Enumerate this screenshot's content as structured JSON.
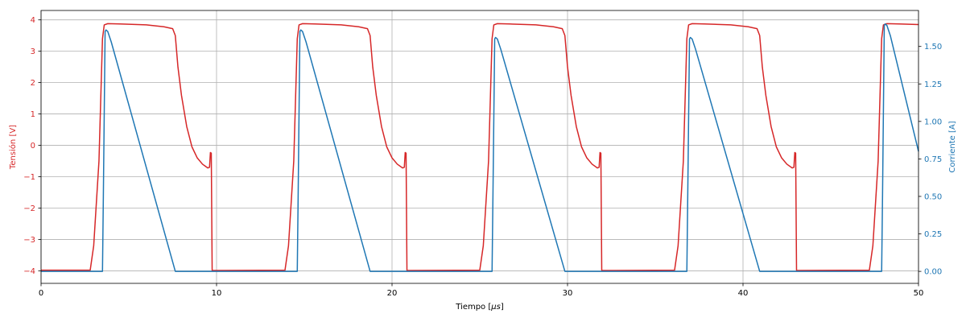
{
  "chart_data": {
    "type": "line",
    "xlabel": "Tiempo [$\\mu s$]",
    "xlim": [
      0,
      50
    ],
    "x_ticks": [
      "0",
      "10",
      "20",
      "30",
      "40",
      "50"
    ],
    "y_left": {
      "label": "Tensión [V]",
      "color": "#d62728",
      "lim": [
        -4.4,
        4.3
      ],
      "ticks": [
        "−4",
        "−3",
        "−2",
        "−1",
        "0",
        "1",
        "2",
        "3",
        "4"
      ]
    },
    "y_right": {
      "label": "Corriente [A]",
      "color": "#1f77b4",
      "lim": [
        -0.08,
        1.74
      ],
      "ticks": [
        "0.00",
        "0.25",
        "0.50",
        "0.75",
        "1.00",
        "1.25",
        "1.50"
      ]
    },
    "grid": true,
    "series": [
      {
        "axis": "left",
        "color": "#d62728",
        "x": [
          0,
          2.8,
          3.0,
          3.3,
          3.5,
          3.6,
          3.8,
          4.5,
          6.0,
          7.0,
          7.5,
          7.65,
          7.8,
          8.0,
          8.3,
          8.6,
          8.9,
          9.2,
          9.5,
          9.6,
          9.65,
          9.7,
          9.75,
          9.8,
          13.9,
          14.1,
          14.4,
          14.6,
          14.7,
          14.9,
          15.6,
          17.1,
          18.1,
          18.6,
          18.75,
          18.9,
          19.1,
          19.4,
          19.7,
          20.0,
          20.3,
          20.6,
          20.7,
          20.75,
          20.8,
          20.85,
          20.9,
          25.0,
          25.2,
          25.5,
          25.7,
          25.8,
          26.0,
          26.7,
          28.2,
          29.2,
          29.7,
          29.85,
          30.0,
          30.2,
          30.5,
          30.8,
          31.1,
          31.4,
          31.7,
          31.8,
          31.85,
          31.9,
          31.95,
          32.0,
          36.1,
          36.3,
          36.6,
          36.8,
          36.9,
          37.1,
          37.8,
          39.3,
          40.3,
          40.8,
          40.95,
          41.1,
          41.3,
          41.6,
          41.9,
          42.2,
          42.5,
          42.8,
          42.9,
          42.95,
          43.0,
          43.05,
          43.1,
          47.2,
          47.4,
          47.7,
          47.9,
          48.0,
          48.2,
          48.9,
          50
        ],
        "y": [
          -3.98,
          -3.98,
          -3.2,
          -0.5,
          3.4,
          3.84,
          3.88,
          3.87,
          3.84,
          3.78,
          3.72,
          3.5,
          2.5,
          1.6,
          0.6,
          -0.05,
          -0.4,
          -0.6,
          -0.72,
          -0.7,
          -0.23,
          -0.25,
          -3.99,
          -3.99,
          -3.98,
          -3.2,
          -0.5,
          3.4,
          3.84,
          3.88,
          3.87,
          3.84,
          3.78,
          3.72,
          3.5,
          2.5,
          1.6,
          0.6,
          -0.05,
          -0.4,
          -0.6,
          -0.72,
          -0.7,
          -0.23,
          -0.25,
          -3.99,
          -3.99,
          -3.98,
          -3.2,
          -0.5,
          3.4,
          3.84,
          3.88,
          3.87,
          3.84,
          3.78,
          3.72,
          3.5,
          2.5,
          1.6,
          0.6,
          -0.05,
          -0.4,
          -0.6,
          -0.72,
          -0.7,
          -0.23,
          -0.25,
          -3.99,
          -3.99,
          -3.98,
          -3.2,
          -0.5,
          3.4,
          3.84,
          3.88,
          3.87,
          3.84,
          3.78,
          3.72,
          3.5,
          2.5,
          1.6,
          0.6,
          -0.05,
          -0.4,
          -0.6,
          -0.72,
          -0.7,
          -0.23,
          -0.25,
          -3.99,
          -3.99,
          -3.98,
          -3.2,
          -0.5,
          3.4,
          3.84,
          3.88,
          3.87,
          3.85
        ]
      },
      {
        "axis": "right",
        "color": "#1f77b4",
        "x": [
          0,
          3.5,
          3.55,
          3.65,
          3.7,
          3.8,
          4.0,
          7.65,
          7.7,
          14.6,
          14.65,
          14.75,
          14.8,
          14.9,
          15.1,
          18.75,
          18.8,
          25.7,
          25.75,
          25.85,
          25.9,
          26.0,
          26.2,
          29.85,
          29.9,
          36.8,
          36.85,
          36.95,
          37.0,
          37.1,
          37.3,
          40.95,
          41.0,
          47.9,
          47.95,
          48.05,
          48.1,
          48.2,
          48.4,
          50
        ],
        "y": [
          0.0,
          0.0,
          0.5,
          1.6,
          1.61,
          1.6,
          1.53,
          0.0,
          0.0,
          0.0,
          0.5,
          1.6,
          1.61,
          1.6,
          1.53,
          0.0,
          0.0,
          0.0,
          0.5,
          1.55,
          1.56,
          1.55,
          1.48,
          0.0,
          0.0,
          0.0,
          0.5,
          1.55,
          1.56,
          1.55,
          1.48,
          0.0,
          0.0,
          0.0,
          0.5,
          1.64,
          1.65,
          1.64,
          1.57,
          0.8
        ]
      }
    ]
  }
}
